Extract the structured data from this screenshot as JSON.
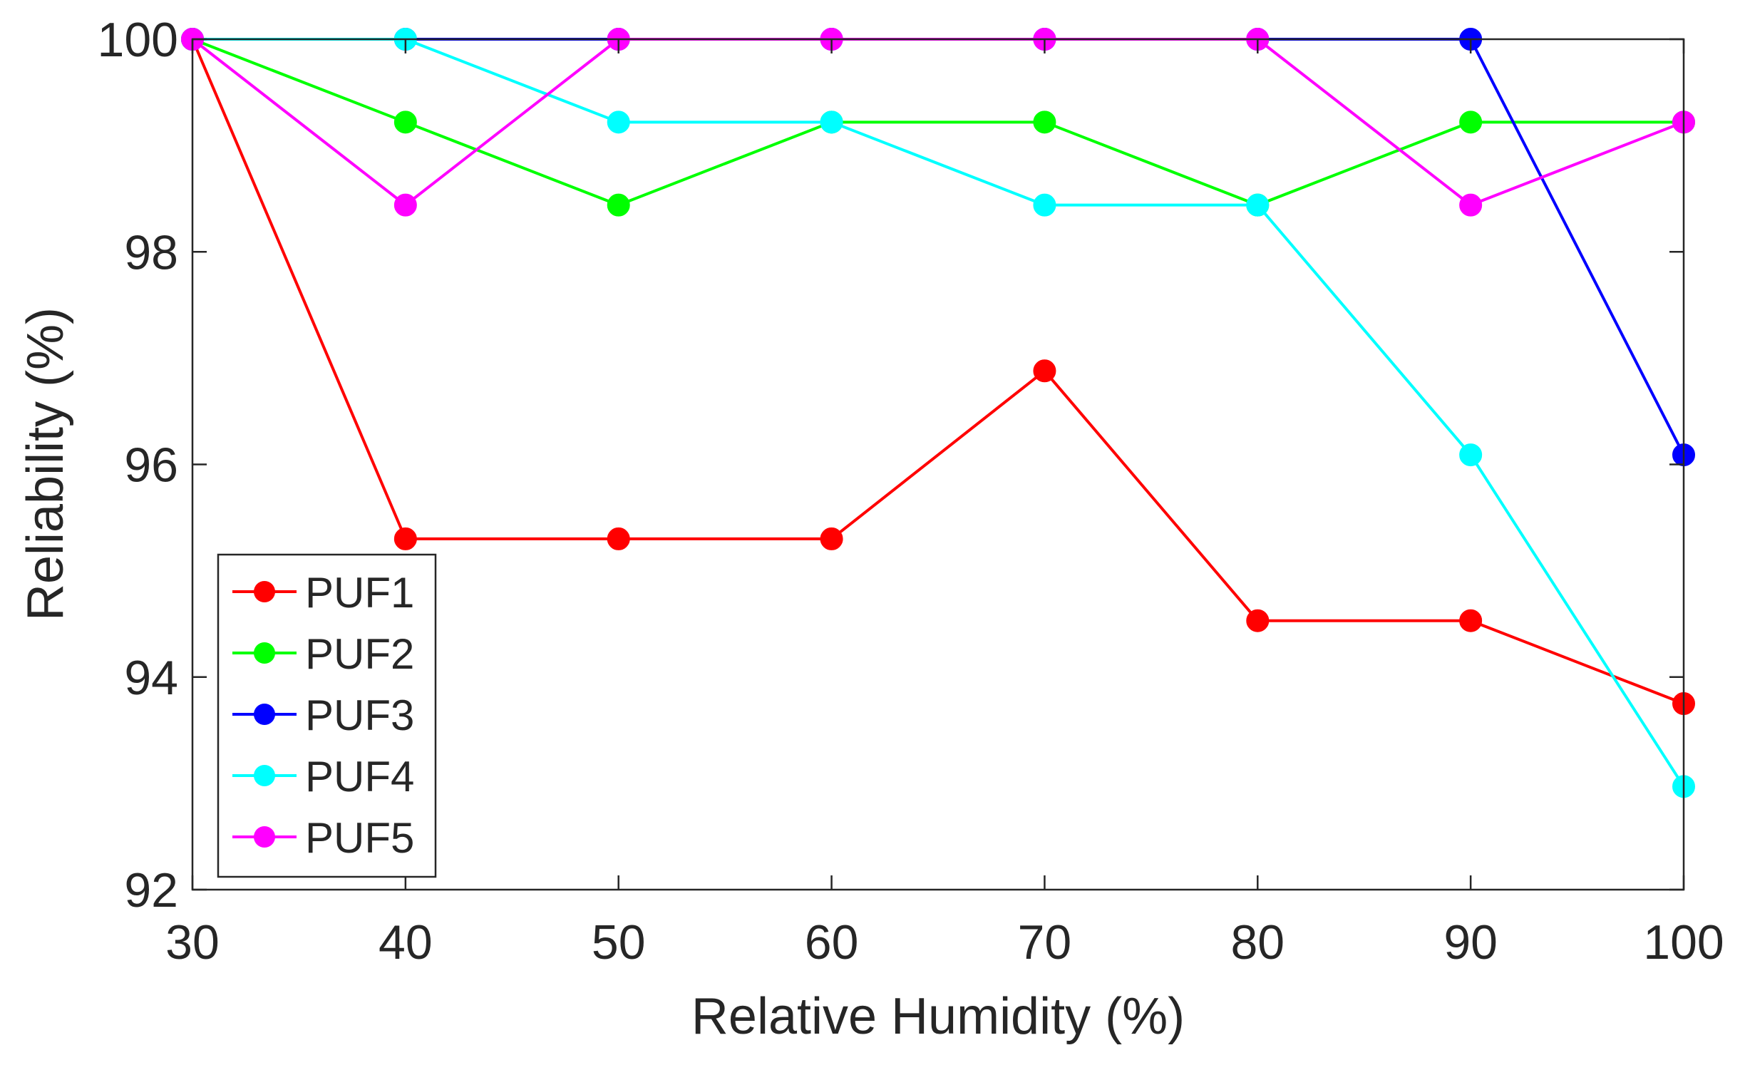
{
  "chart_data": {
    "type": "line",
    "title": "",
    "xlabel": "Relative Humidity (%)",
    "ylabel": "Reliability (%)",
    "x": [
      30,
      40,
      50,
      60,
      70,
      80,
      90,
      100
    ],
    "xlim": [
      30,
      100
    ],
    "ylim": [
      92,
      100
    ],
    "xticks": [
      30,
      40,
      50,
      60,
      70,
      80,
      90,
      100
    ],
    "yticks": [
      92,
      94,
      96,
      98,
      100
    ],
    "grid": false,
    "legend_position": "bottom-left",
    "series": [
      {
        "name": "PUF1",
        "color": "#ff0000",
        "values": [
          100,
          95.3,
          95.3,
          95.3,
          96.88,
          94.53,
          94.53,
          93.75
        ]
      },
      {
        "name": "PUF2",
        "color": "#00ff00",
        "values": [
          100,
          99.22,
          98.44,
          99.22,
          99.22,
          98.44,
          99.22,
          99.22
        ]
      },
      {
        "name": "PUF3",
        "color": "#0000ff",
        "values": [
          100,
          100,
          100,
          100,
          100,
          100,
          100,
          96.09
        ]
      },
      {
        "name": "PUF4",
        "color": "#00ffff",
        "values": [
          100,
          100,
          99.22,
          99.22,
          98.44,
          98.44,
          96.09,
          92.97
        ]
      },
      {
        "name": "PUF5",
        "color": "#ff00ff",
        "values": [
          100,
          98.44,
          100,
          100,
          100,
          100,
          98.44,
          99.22
        ]
      }
    ]
  }
}
